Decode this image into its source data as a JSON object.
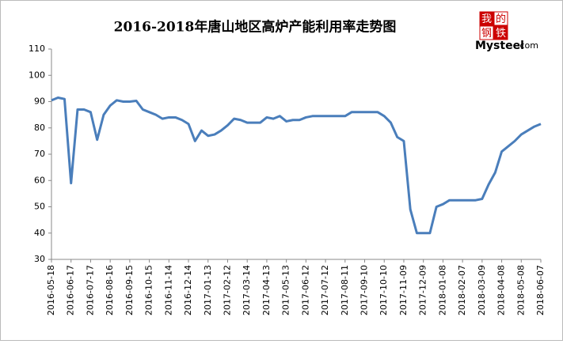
{
  "chart_data": {
    "type": "line",
    "title": "2016-2018年唐山地区高炉产能利用率走势图",
    "logo": {
      "chars": [
        "我",
        "的",
        "钢",
        "铁"
      ],
      "brand": "Mysteel",
      "suffix": ".com"
    },
    "categories": [
      "2016-05-18",
      null,
      null,
      "2016-06-17",
      null,
      null,
      "2016-07-17",
      null,
      null,
      "2016-08-16",
      null,
      null,
      "2016-09-15",
      null,
      null,
      "2016-10-15",
      null,
      null,
      "2016-11-14",
      null,
      null,
      "2016-12-14",
      null,
      null,
      "2017-01-13",
      null,
      null,
      "2017-02-12",
      null,
      null,
      "2017-03-14",
      null,
      null,
      "2017-04-13",
      null,
      null,
      "2017-05-13",
      null,
      null,
      "2017-06-12",
      null,
      null,
      "2017-07-12",
      null,
      null,
      "2017-08-11",
      null,
      null,
      "2017-09-10",
      null,
      null,
      "2017-10-10",
      null,
      null,
      "2017-11-09",
      null,
      null,
      "2017-12-09",
      null,
      null,
      "2018-01-08",
      null,
      null,
      "2018-02-07",
      null,
      null,
      "2018-03-09",
      null,
      null,
      "2018-04-08",
      null,
      null,
      "2018-05-08",
      null,
      null,
      "2018-06-07"
    ],
    "series": [
      {
        "color": "#4a7ebb",
        "values": [
          90.5,
          91.5,
          91,
          59,
          87,
          87,
          86,
          75.5,
          85,
          88.5,
          90.5,
          90,
          90,
          90.3,
          87,
          86,
          85,
          83.5,
          84,
          84,
          83,
          81.5,
          75,
          79,
          77,
          77.5,
          79,
          81,
          83.5,
          83,
          82,
          82,
          82,
          84,
          83.5,
          84.5,
          82.5,
          83,
          83,
          84,
          84.5,
          84.5,
          84.5,
          84.5,
          84.5,
          84.5,
          86,
          86,
          86,
          86,
          86,
          84.5,
          82,
          76.5,
          75,
          49,
          40,
          40,
          40,
          50,
          51,
          52.5,
          52.5,
          52.5,
          52.5,
          52.5,
          53,
          58.5,
          63,
          71,
          73,
          75,
          77.5,
          79,
          80.5,
          81.5
        ]
      }
    ],
    "ylim": [
      30,
      110
    ],
    "yticks": [
      30,
      40,
      50,
      60,
      70,
      80,
      90,
      100,
      110
    ],
    "grid": false
  }
}
